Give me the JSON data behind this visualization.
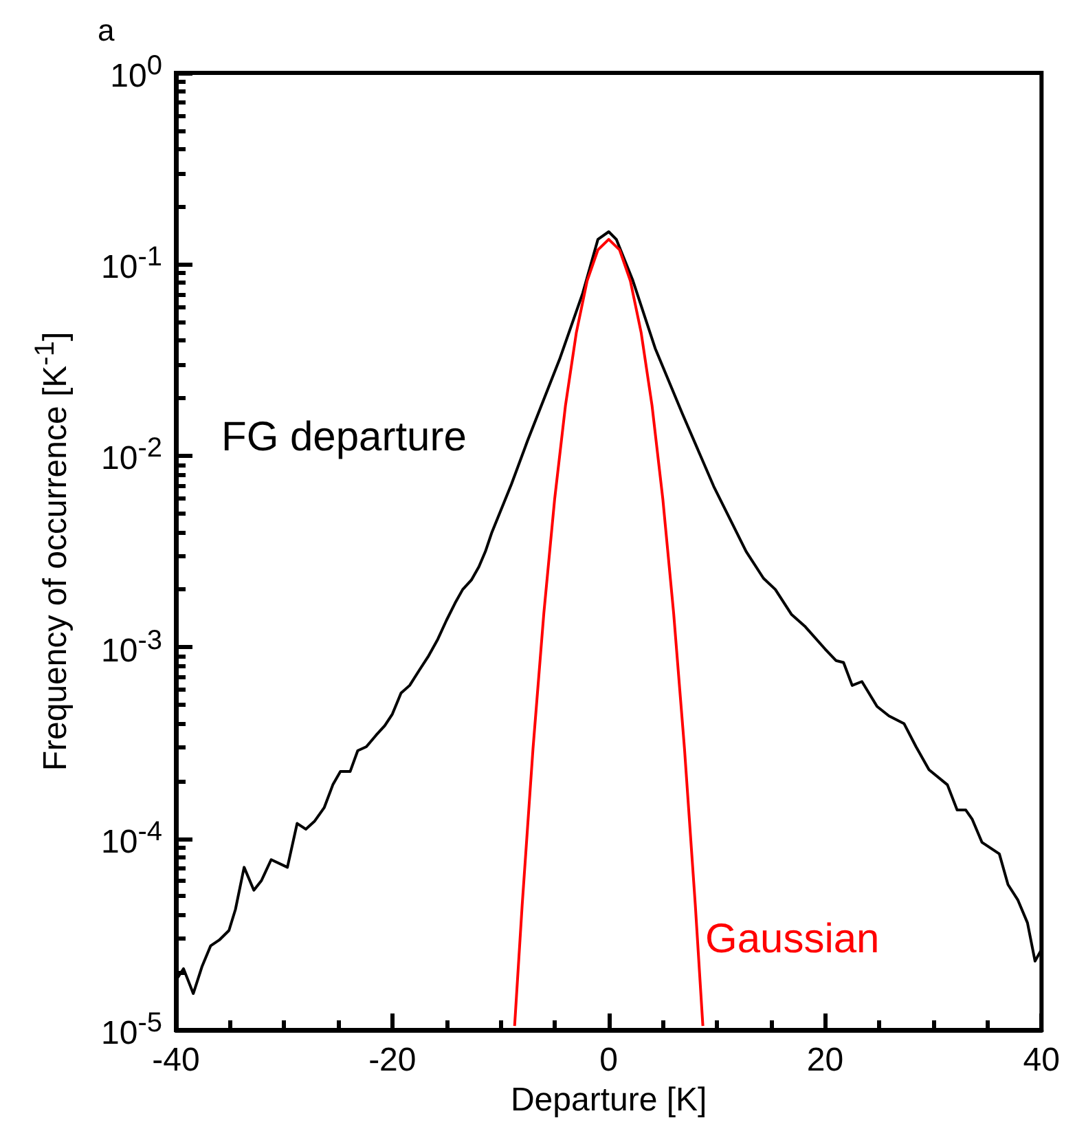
{
  "chart_data": {
    "type": "line",
    "title": "a",
    "xlabel": "Departure [K]",
    "ylabel": "Frequency of occurrence [K$^{-1}$]",
    "log": "y",
    "xlim": [
      -40,
      40
    ],
    "ylim": [
      1e-05,
      1
    ],
    "xticks": [
      -40,
      -20,
      0,
      20,
      40
    ],
    "yticks": [
      {
        "value": 1e-05,
        "label": "10$^{-5}$"
      },
      {
        "value": 0.0001,
        "label": "10$^{-4}$"
      },
      {
        "value": 0.001,
        "label": "10$^{-3}$"
      },
      {
        "value": 0.01,
        "label": "10$^{-2}$"
      },
      {
        "value": 0.1,
        "label": "10$^{-1}$"
      },
      {
        "value": 1,
        "label": "10$^{0}$"
      }
    ],
    "grid": false,
    "legend": false,
    "marker": "none",
    "line_style": "solid",
    "series": [
      {
        "name": "FG departure",
        "color": "#000000",
        "x": [
          -40.0,
          -39.3,
          -38.4,
          -37.6,
          -36.8,
          -36.0,
          -35.1,
          -34.5,
          -33.7,
          -32.8,
          -32.1,
          -31.2,
          -29.7,
          -28.8,
          -28.0,
          -27.2,
          -26.3,
          -25.5,
          -24.8,
          -23.9,
          -23.2,
          -22.4,
          -21.5,
          -20.7,
          -20.0,
          -19.2,
          -18.4,
          -17.5,
          -16.7,
          -15.8,
          -15.0,
          -14.2,
          -13.5,
          -12.7,
          -12.0,
          -11.4,
          -10.8,
          -9.0,
          -7.5,
          -4.5,
          -2.4,
          -1.0,
          0,
          0.7,
          2.2,
          4.3,
          6.8,
          9.7,
          12.7,
          14.3,
          15.4,
          16.9,
          18.1,
          20.0,
          21.0,
          21.7,
          22.5,
          23.4,
          24.8,
          25.9,
          27.3,
          28.4,
          29.6,
          31.3,
          32.2,
          33.0,
          33.6,
          34.5,
          36.1,
          36.9,
          37.8,
          38.7,
          39.4,
          40.0
        ],
        "values": [
          1.82e-05,
          2.09e-05,
          1.55e-05,
          2.14e-05,
          2.75e-05,
          2.95e-05,
          3.31e-05,
          4.27e-05,
          7.08e-05,
          5.37e-05,
          6.03e-05,
          7.76e-05,
          7.08e-05,
          0.00012,
          0.000112,
          0.000123,
          0.000145,
          0.000191,
          0.000224,
          0.000224,
          0.000288,
          0.000302,
          0.000347,
          0.000389,
          0.000447,
          0.000575,
          0.000631,
          0.000759,
          0.000891,
          0.0011,
          0.00138,
          0.0017,
          0.002,
          0.00224,
          0.00263,
          0.00316,
          0.00398,
          0.00708,
          0.012,
          0.0324,
          0.0708,
          0.135,
          0.148,
          0.135,
          0.0832,
          0.0363,
          0.0166,
          0.00692,
          0.00316,
          0.00229,
          0.002,
          0.00148,
          0.00129,
          0.000977,
          0.000851,
          0.000832,
          0.000631,
          0.000661,
          0.00049,
          0.000437,
          0.000398,
          0.000302,
          0.000229,
          0.000191,
          0.000141,
          0.000141,
          0.000126,
          9.55e-05,
          8.32e-05,
          5.75e-05,
          4.79e-05,
          3.63e-05,
          2.29e-05,
          2.63e-05
        ]
      },
      {
        "name": "Gaussian",
        "color": "#ff0000",
        "x": [
          -8.7,
          -8,
          -7,
          -6,
          -5,
          -4,
          -3,
          -2,
          -1,
          0,
          1,
          2,
          3,
          4,
          5,
          6,
          7,
          8,
          8.7
        ],
        "values": [
          1.05e-05,
          4.5e-05,
          0.000295,
          0.0015,
          0.00593,
          0.0183,
          0.0438,
          0.0819,
          0.119,
          0.135,
          0.119,
          0.0819,
          0.0438,
          0.0183,
          0.00593,
          0.0015,
          0.000295,
          4.5e-05,
          1.05e-05
        ]
      }
    ]
  }
}
